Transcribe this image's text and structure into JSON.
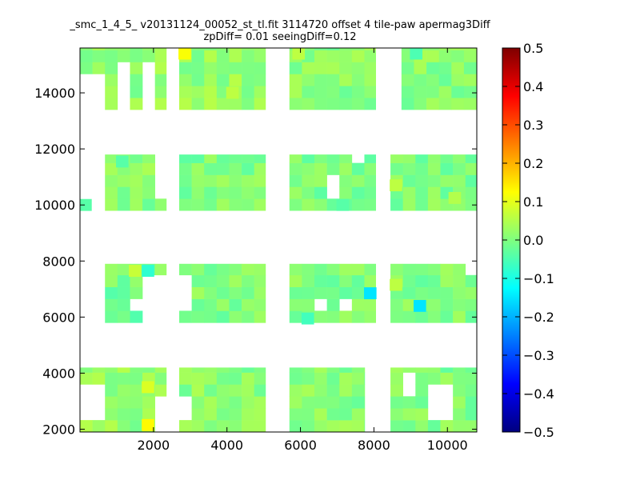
{
  "chart_data": {
    "type": "heatmap",
    "title": "_smc_1_4_5_ v20131124_00052_st_tl.fit 3114720 offset 4 tile-paw apermag3Diff",
    "subtitle": "zpDiff= 0.01 seeingDiff=0.12",
    "xlim": [
      0,
      10800
    ],
    "ylim": [
      1900,
      15600
    ],
    "x_ticks": [
      2000,
      4000,
      6000,
      8000,
      10000
    ],
    "y_ticks": [
      2000,
      4000,
      6000,
      8000,
      10000,
      12000,
      14000
    ],
    "cell_size": [
      340,
      425
    ],
    "colormap": "jet",
    "color_range": [
      -0.5,
      0.5
    ],
    "colorbar_ticks": [
      "0.5",
      "0.4",
      "0.3",
      "0.2",
      "0.1",
      "0.0",
      "−0.1",
      "−0.2",
      "−0.3",
      "−0.4",
      "−0.5"
    ],
    "grid": false,
    "regions": [
      {
        "x": [
          0,
          2350
        ],
        "y": [
          1900,
          4200
        ],
        "value": 0.02
      },
      {
        "x": [
          2700,
          5050
        ],
        "y": [
          1900,
          4200
        ],
        "value": 0.01
      },
      {
        "x": [
          5700,
          7750
        ],
        "y": [
          1900,
          4200
        ],
        "value": 0.01
      },
      {
        "x": [
          8450,
          10800
        ],
        "y": [
          1900,
          4200
        ],
        "value": 0.0
      },
      {
        "x": [
          0,
          2350
        ],
        "y": [
          5800,
          7900
        ],
        "value": -0.01
      },
      {
        "x": [
          2700,
          5050
        ],
        "y": [
          5800,
          7900
        ],
        "value": 0.0
      },
      {
        "x": [
          5700,
          8050
        ],
        "y": [
          5800,
          7900
        ],
        "value": 0.0
      },
      {
        "x": [
          8450,
          10800
        ],
        "y": [
          5800,
          7900
        ],
        "value": 0.0
      },
      {
        "x": [
          0,
          2350
        ],
        "y": [
          9800,
          11800
        ],
        "value": 0.01
      },
      {
        "x": [
          2700,
          5050
        ],
        "y": [
          9800,
          11800
        ],
        "value": 0.0
      },
      {
        "x": [
          5700,
          8050
        ],
        "y": [
          9800,
          11800
        ],
        "value": 0.0
      },
      {
        "x": [
          8450,
          10800
        ],
        "y": [
          9800,
          11800
        ],
        "value": 0.0
      },
      {
        "x": [
          0,
          2350
        ],
        "y": [
          13400,
          15600
        ],
        "value": 0.02
      },
      {
        "x": [
          2700,
          5050
        ],
        "y": [
          13400,
          15600
        ],
        "value": 0.02
      },
      {
        "x": [
          5700,
          8050
        ],
        "y": [
          13400,
          15600
        ],
        "value": 0.01
      },
      {
        "x": [
          8750,
          10800
        ],
        "y": [
          13400,
          15600
        ],
        "value": 0.01
      }
    ],
    "highlights": [
      {
        "x": 2850,
        "y": 15400,
        "value": 0.12
      },
      {
        "x": 1850,
        "y": 2150,
        "value": 0.13
      },
      {
        "x": 1850,
        "y": 3500,
        "value": 0.09
      },
      {
        "x": 1850,
        "y": 7650,
        "value": -0.08
      },
      {
        "x": 1500,
        "y": 7650,
        "value": 0.07
      },
      {
        "x": 7900,
        "y": 6850,
        "value": -0.15
      },
      {
        "x": 9250,
        "y": 6400,
        "value": -0.15
      },
      {
        "x": 10200,
        "y": 10250,
        "value": 0.05
      },
      {
        "x": 4150,
        "y": 14000,
        "value": 0.06
      },
      {
        "x": 5950,
        "y": 15400,
        "value": 0.06
      },
      {
        "x": 8600,
        "y": 10700,
        "value": 0.06
      },
      {
        "x": 8600,
        "y": 7150,
        "value": 0.06
      },
      {
        "x": 150,
        "y": 10000,
        "value": -0.04
      },
      {
        "x": 1150,
        "y": 11550,
        "value": -0.04
      },
      {
        "x": 7150,
        "y": 10000,
        "value": -0.04
      },
      {
        "x": 6200,
        "y": 5950,
        "value": -0.06
      },
      {
        "x": 9150,
        "y": 15400,
        "value": -0.05
      }
    ],
    "holes": [
      {
        "x": [
          0,
          650
        ],
        "y": [
          13400,
          14700
        ]
      },
      {
        "x": [
          1050,
          1400
        ],
        "y": [
          13400,
          15200
        ]
      },
      {
        "x": [
          1700,
          2000
        ],
        "y": [
          13400,
          15200
        ]
      },
      {
        "x": [
          2350,
          2700
        ],
        "y": [
          15200,
          15600
        ]
      },
      {
        "x": [
          2350,
          2700
        ],
        "y": [
          13400,
          14700
        ]
      },
      {
        "x": [
          8050,
          8750
        ],
        "y": [
          13400,
          15600
        ]
      },
      {
        "x": [
          0,
          650
        ],
        "y": [
          9800,
          11800
        ]
      },
      {
        "x": [
          2000,
          2350
        ],
        "y": [
          10400,
          11800
        ]
      },
      {
        "x": [
          7400,
          7750
        ],
        "y": [
          11400,
          11800
        ]
      },
      {
        "x": [
          6700,
          7100
        ],
        "y": [
          10400,
          10900
        ]
      },
      {
        "x": [
          0,
          650
        ],
        "y": [
          5800,
          7900
        ]
      },
      {
        "x": [
          1700,
          2350
        ],
        "y": [
          5800,
          7400
        ]
      },
      {
        "x": [
          1400,
          1700
        ],
        "y": [
          6100,
          6500
        ]
      },
      {
        "x": [
          2700,
          3050
        ],
        "y": [
          6100,
          7400
        ]
      },
      {
        "x": [
          6400,
          6700
        ],
        "y": [
          6100,
          6500
        ]
      },
      {
        "x": [
          7100,
          7400
        ],
        "y": [
          6100,
          6500
        ]
      },
      {
        "x": [
          8050,
          8450
        ],
        "y": [
          5800,
          7900
        ]
      },
      {
        "x": [
          10450,
          10800
        ],
        "y": [
          7400,
          7900
        ]
      },
      {
        "x": [
          0,
          650
        ],
        "y": [
          2400,
          3700
        ]
      },
      {
        "x": [
          2000,
          2350
        ],
        "y": [
          1900,
          3200
        ]
      },
      {
        "x": [
          2700,
          3050
        ],
        "y": [
          2400,
          3200
        ]
      },
      {
        "x": [
          7750,
          8450
        ],
        "y": [
          1900,
          3500
        ]
      },
      {
        "x": [
          9550,
          10150
        ],
        "y": [
          2400,
          3700
        ]
      },
      {
        "x": [
          8750,
          9150
        ],
        "y": [
          3200,
          3900
        ]
      }
    ]
  }
}
